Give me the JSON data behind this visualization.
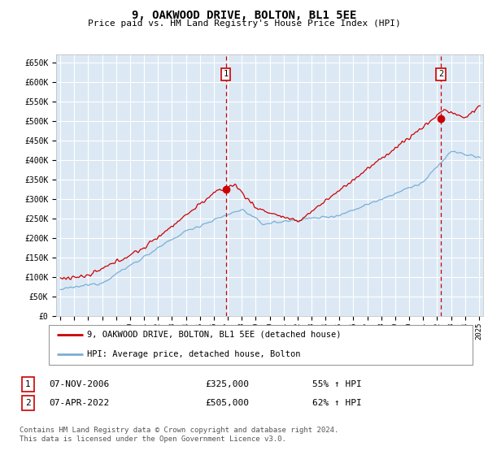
{
  "title": "9, OAKWOOD DRIVE, BOLTON, BL1 5EE",
  "subtitle": "Price paid vs. HM Land Registry's House Price Index (HPI)",
  "ylabel_ticks": [
    "£0",
    "£50K",
    "£100K",
    "£150K",
    "£200K",
    "£250K",
    "£300K",
    "£350K",
    "£400K",
    "£450K",
    "£500K",
    "£550K",
    "£600K",
    "£650K"
  ],
  "ytick_vals": [
    0,
    50000,
    100000,
    150000,
    200000,
    250000,
    300000,
    350000,
    400000,
    450000,
    500000,
    550000,
    600000,
    650000
  ],
  "ylim": [
    0,
    670000
  ],
  "xlim_start": 1994.7,
  "xlim_end": 2025.3,
  "background_color": "#dce9f5",
  "grid_color": "#ffffff",
  "red_line_color": "#cc0000",
  "blue_line_color": "#7aafd4",
  "sale1_date_num": 2006.856,
  "sale1_price": 325000,
  "sale2_date_num": 2022.27,
  "sale2_price": 505000,
  "legend_line1": "9, OAKWOOD DRIVE, BOLTON, BL1 5EE (detached house)",
  "legend_line2": "HPI: Average price, detached house, Bolton",
  "table_row1": [
    "1",
    "07-NOV-2006",
    "£325,000",
    "55% ↑ HPI"
  ],
  "table_row2": [
    "2",
    "07-APR-2022",
    "£505,000",
    "62% ↑ HPI"
  ],
  "copyright": "Contains HM Land Registry data © Crown copyright and database right 2024.\nThis data is licensed under the Open Government Licence v3.0.",
  "xtick_years": [
    1995,
    1996,
    1997,
    1998,
    1999,
    2000,
    2001,
    2002,
    2003,
    2004,
    2005,
    2006,
    2007,
    2008,
    2009,
    2010,
    2011,
    2012,
    2013,
    2014,
    2015,
    2016,
    2017,
    2018,
    2019,
    2020,
    2021,
    2022,
    2023,
    2024,
    2025
  ]
}
